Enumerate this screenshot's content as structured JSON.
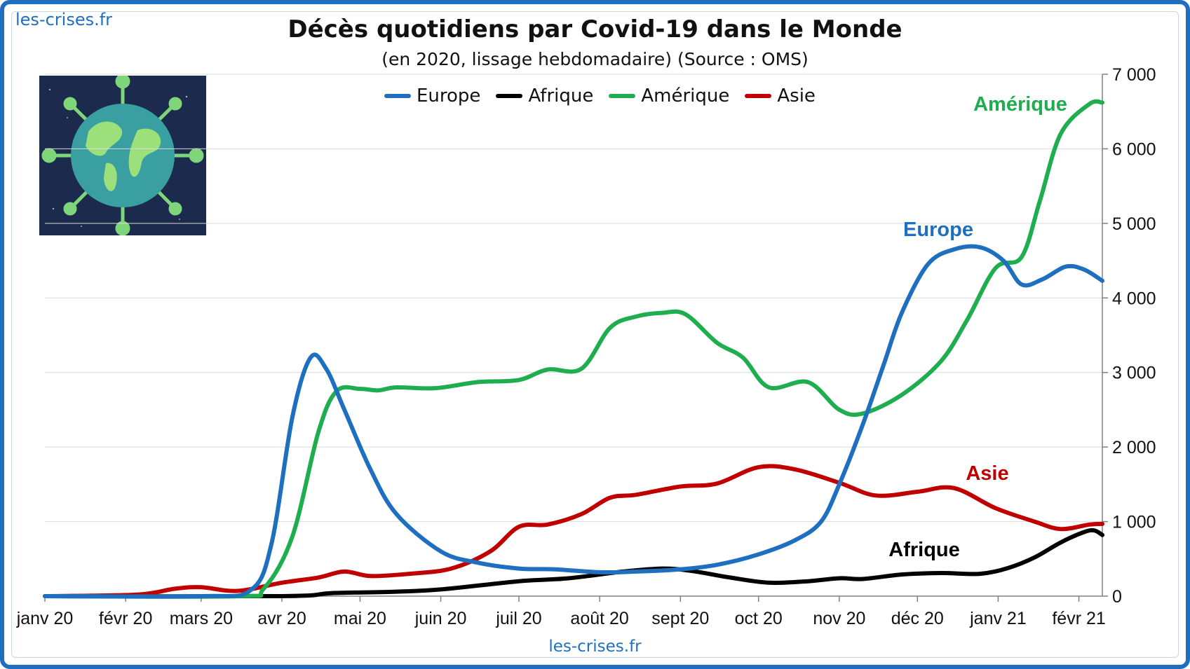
{
  "branding": {
    "top": "les-crises.fr",
    "bottom": "les-crises.fr"
  },
  "colors": {
    "Europe": "#1f6fc0",
    "Afrique": "#000000",
    "Amérique": "#1fae4f",
    "Asie": "#c00000",
    "frame": "#1f6fc0"
  },
  "icon": "globe-virus-icon",
  "chart_data": {
    "type": "line",
    "title": "Décès quotidiens par Covid-19 dans le Monde",
    "subtitle": "(en 2020, lissage hebdomadaire) (Source : OMS)",
    "x_tick_labels": [
      "janv 20",
      "févr 20",
      "mars 20",
      "avr 20",
      "mai 20",
      "juin 20",
      "juil 20",
      "août 20",
      "sept 20",
      "oct 20",
      "nov 20",
      "déc 20",
      "janv 21",
      "févr 21"
    ],
    "y_tick_labels": [
      "0",
      "1 000",
      "2 000",
      "3 000",
      "4 000",
      "5 000",
      "6 000",
      "7 000"
    ],
    "ylim": [
      0,
      7000
    ],
    "xlim": [
      "2020-01-01",
      "2021-02-10"
    ],
    "y_axis_side": "right",
    "grid": true,
    "legend_position": "top",
    "series": [
      {
        "name": "Europe",
        "label": "Europe",
        "points": [
          [
            "2020-01-01",
            0
          ],
          [
            "2020-03-01",
            0
          ],
          [
            "2020-03-20",
            80
          ],
          [
            "2020-03-28",
            700
          ],
          [
            "2020-04-05",
            2400
          ],
          [
            "2020-04-12",
            3200
          ],
          [
            "2020-04-18",
            3050
          ],
          [
            "2020-04-25",
            2500
          ],
          [
            "2020-05-05",
            1700
          ],
          [
            "2020-05-15",
            1100
          ],
          [
            "2020-06-01",
            600
          ],
          [
            "2020-06-15",
            450
          ],
          [
            "2020-07-01",
            370
          ],
          [
            "2020-07-15",
            360
          ],
          [
            "2020-08-01",
            320
          ],
          [
            "2020-08-15",
            330
          ],
          [
            "2020-09-01",
            360
          ],
          [
            "2020-09-15",
            420
          ],
          [
            "2020-10-01",
            560
          ],
          [
            "2020-10-15",
            750
          ],
          [
            "2020-10-25",
            1000
          ],
          [
            "2020-11-01",
            1500
          ],
          [
            "2020-11-10",
            2300
          ],
          [
            "2020-11-18",
            3100
          ],
          [
            "2020-11-25",
            3800
          ],
          [
            "2020-12-05",
            4450
          ],
          [
            "2020-12-15",
            4650
          ],
          [
            "2020-12-25",
            4680
          ],
          [
            "2021-01-03",
            4500
          ],
          [
            "2021-01-10",
            4180
          ],
          [
            "2021-01-18",
            4250
          ],
          [
            "2021-01-27",
            4420
          ],
          [
            "2021-02-03",
            4380
          ],
          [
            "2021-02-10",
            4230
          ]
        ]
      },
      {
        "name": "Afrique",
        "label": "Afrique",
        "points": [
          [
            "2020-01-01",
            0
          ],
          [
            "2020-04-01",
            0
          ],
          [
            "2020-04-20",
            40
          ],
          [
            "2020-05-15",
            60
          ],
          [
            "2020-06-01",
            90
          ],
          [
            "2020-07-01",
            200
          ],
          [
            "2020-07-20",
            240
          ],
          [
            "2020-08-10",
            330
          ],
          [
            "2020-08-25",
            370
          ],
          [
            "2020-09-05",
            340
          ],
          [
            "2020-09-20",
            250
          ],
          [
            "2020-10-05",
            180
          ],
          [
            "2020-10-20",
            200
          ],
          [
            "2020-11-01",
            240
          ],
          [
            "2020-11-10",
            230
          ],
          [
            "2020-11-25",
            290
          ],
          [
            "2020-12-10",
            310
          ],
          [
            "2020-12-25",
            300
          ],
          [
            "2021-01-05",
            380
          ],
          [
            "2021-01-15",
            520
          ],
          [
            "2021-01-25",
            720
          ],
          [
            "2021-02-03",
            860
          ],
          [
            "2021-02-07",
            880
          ],
          [
            "2021-02-10",
            820
          ]
        ]
      },
      {
        "name": "Amérique",
        "label": "Amérique",
        "points": [
          [
            "2020-01-01",
            0
          ],
          [
            "2020-03-15",
            0
          ],
          [
            "2020-03-25",
            100
          ],
          [
            "2020-04-05",
            800
          ],
          [
            "2020-04-15",
            2200
          ],
          [
            "2020-04-22",
            2750
          ],
          [
            "2020-05-01",
            2780
          ],
          [
            "2020-05-08",
            2760
          ],
          [
            "2020-05-15",
            2800
          ],
          [
            "2020-05-30",
            2790
          ],
          [
            "2020-06-15",
            2870
          ],
          [
            "2020-07-01",
            2900
          ],
          [
            "2020-07-12",
            3040
          ],
          [
            "2020-07-25",
            3050
          ],
          [
            "2020-08-05",
            3600
          ],
          [
            "2020-08-15",
            3750
          ],
          [
            "2020-08-25",
            3800
          ],
          [
            "2020-09-03",
            3780
          ],
          [
            "2020-09-15",
            3400
          ],
          [
            "2020-09-25",
            3200
          ],
          [
            "2020-10-05",
            2800
          ],
          [
            "2020-10-20",
            2870
          ],
          [
            "2020-11-01",
            2500
          ],
          [
            "2020-11-10",
            2450
          ],
          [
            "2020-11-25",
            2700
          ],
          [
            "2020-12-10",
            3150
          ],
          [
            "2020-12-20",
            3700
          ],
          [
            "2020-12-31",
            4400
          ],
          [
            "2021-01-10",
            4550
          ],
          [
            "2021-01-17",
            5300
          ],
          [
            "2021-01-25",
            6200
          ],
          [
            "2021-02-05",
            6600
          ],
          [
            "2021-02-10",
            6620
          ]
        ]
      },
      {
        "name": "Asie",
        "label": "Asie",
        "points": [
          [
            "2020-01-01",
            0
          ],
          [
            "2020-02-05",
            20
          ],
          [
            "2020-02-20",
            100
          ],
          [
            "2020-03-01",
            120
          ],
          [
            "2020-03-15",
            70
          ],
          [
            "2020-04-01",
            180
          ],
          [
            "2020-04-15",
            250
          ],
          [
            "2020-04-25",
            330
          ],
          [
            "2020-05-05",
            270
          ],
          [
            "2020-05-20",
            300
          ],
          [
            "2020-06-05",
            370
          ],
          [
            "2020-06-20",
            600
          ],
          [
            "2020-07-01",
            930
          ],
          [
            "2020-07-12",
            960
          ],
          [
            "2020-07-25",
            1100
          ],
          [
            "2020-08-05",
            1320
          ],
          [
            "2020-08-15",
            1360
          ],
          [
            "2020-09-01",
            1470
          ],
          [
            "2020-09-15",
            1510
          ],
          [
            "2020-10-01",
            1730
          ],
          [
            "2020-10-15",
            1700
          ],
          [
            "2020-11-01",
            1520
          ],
          [
            "2020-11-15",
            1350
          ],
          [
            "2020-12-01",
            1400
          ],
          [
            "2020-12-15",
            1450
          ],
          [
            "2020-12-31",
            1180
          ],
          [
            "2021-01-15",
            1000
          ],
          [
            "2021-01-25",
            900
          ],
          [
            "2021-02-05",
            960
          ],
          [
            "2021-02-10",
            970
          ]
        ]
      }
    ]
  }
}
